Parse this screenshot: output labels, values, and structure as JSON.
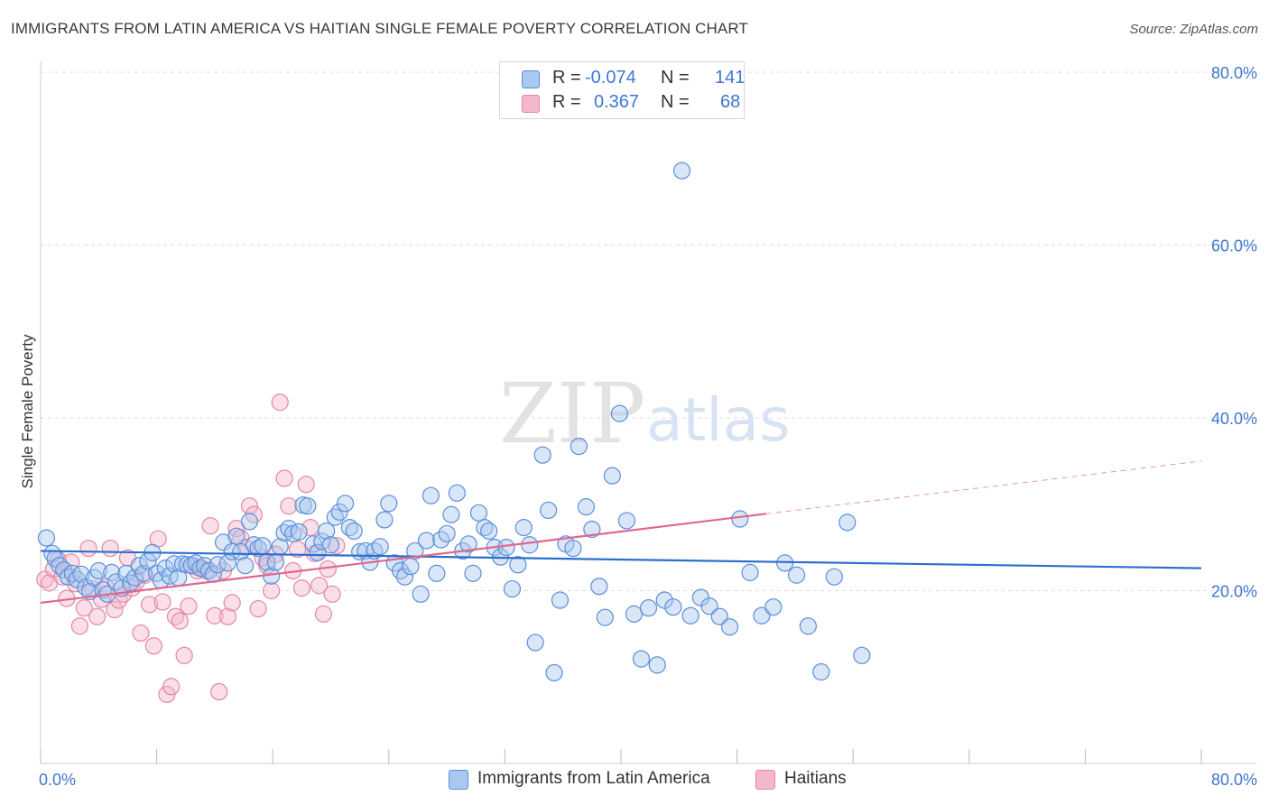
{
  "header": {
    "title": "IMMIGRANTS FROM LATIN AMERICA VS HAITIAN SINGLE FEMALE POVERTY CORRELATION CHART",
    "source": "Source: ZipAtlas.com"
  },
  "legend": {
    "series1": {
      "r_label": "R =",
      "r_value": "-0.074",
      "n_label": "N =",
      "n_value": "141"
    },
    "series2": {
      "r_label": "R =",
      "r_value": "0.367",
      "n_label": "N =",
      "n_value": "68"
    }
  },
  "bottom_legend": {
    "series1_label": "Immigrants from Latin America",
    "series2_label": "Haitians"
  },
  "watermark": {
    "zip": "ZIP",
    "atlas": "atlas"
  },
  "colors": {
    "blue_fill": "#a9c8f0",
    "blue_stroke": "#5b8fd8",
    "blue_line": "#2a6fcf",
    "pink_fill": "#f5b8cb",
    "pink_stroke": "#e486a6",
    "pink_line": "#e06690",
    "tick_text": "#3f77d0",
    "grid": "#dddddd"
  },
  "chart_data": {
    "type": "scatter",
    "title": "IMMIGRANTS FROM LATIN AMERICA VS HAITIAN SINGLE FEMALE POVERTY CORRELATION CHART",
    "xlabel": "",
    "ylabel": "Single Female Poverty",
    "xlim": [
      0,
      80
    ],
    "ylim": [
      0,
      80
    ],
    "x_tick_labels": [
      "0.0%",
      "80.0%"
    ],
    "y_ticks": [
      20,
      40,
      60,
      80
    ],
    "y_tick_labels": [
      "20.0%",
      "40.0%",
      "60.0%",
      "80.0%"
    ],
    "grid": true,
    "legend_position": "top-center",
    "series": [
      {
        "name": "Immigrants from Latin America",
        "r": -0.074,
        "n": 141,
        "trend": {
          "x": [
            0,
            80
          ],
          "y": [
            24.6,
            22.6
          ]
        },
        "points": [
          [
            0.4,
            26.1
          ],
          [
            0.8,
            24.3
          ],
          [
            1.0,
            23.7
          ],
          [
            1.3,
            22.9
          ],
          [
            1.6,
            22.4
          ],
          [
            1.9,
            21.6
          ],
          [
            2.2,
            22.0
          ],
          [
            2.5,
            21.3
          ],
          [
            2.8,
            21.9
          ],
          [
            3.1,
            20.4
          ],
          [
            3.4,
            19.9
          ],
          [
            3.7,
            21.5
          ],
          [
            4.0,
            22.3
          ],
          [
            4.3,
            20.1
          ],
          [
            4.6,
            19.6
          ],
          [
            4.9,
            22.1
          ],
          [
            5.2,
            21.0
          ],
          [
            5.6,
            20.3
          ],
          [
            5.9,
            22.0
          ],
          [
            6.2,
            20.9
          ],
          [
            6.5,
            21.5
          ],
          [
            6.8,
            22.9
          ],
          [
            7.1,
            22.0
          ],
          [
            7.4,
            23.4
          ],
          [
            7.7,
            24.4
          ],
          [
            8.0,
            22.0
          ],
          [
            8.3,
            21.2
          ],
          [
            8.6,
            22.6
          ],
          [
            8.9,
            21.7
          ],
          [
            9.2,
            23.1
          ],
          [
            9.5,
            21.5
          ],
          [
            9.8,
            23.1
          ],
          [
            10.1,
            23.0
          ],
          [
            10.4,
            22.9
          ],
          [
            10.7,
            23.2
          ],
          [
            11.0,
            22.6
          ],
          [
            11.3,
            22.9
          ],
          [
            11.6,
            22.3
          ],
          [
            11.9,
            21.9
          ],
          [
            12.2,
            23.0
          ],
          [
            12.6,
            25.6
          ],
          [
            12.9,
            23.2
          ],
          [
            13.2,
            24.5
          ],
          [
            13.5,
            26.3
          ],
          [
            13.8,
            24.5
          ],
          [
            14.1,
            22.9
          ],
          [
            14.4,
            28.0
          ],
          [
            14.7,
            25.3
          ],
          [
            15.0,
            24.9
          ],
          [
            15.3,
            25.2
          ],
          [
            15.6,
            23.3
          ],
          [
            15.9,
            21.7
          ],
          [
            16.2,
            23.3
          ],
          [
            16.5,
            25.1
          ],
          [
            16.8,
            26.7
          ],
          [
            17.1,
            27.2
          ],
          [
            17.4,
            26.6
          ],
          [
            17.8,
            26.8
          ],
          [
            18.1,
            29.9
          ],
          [
            18.4,
            29.8
          ],
          [
            18.8,
            25.4
          ],
          [
            19.1,
            24.4
          ],
          [
            19.4,
            25.7
          ],
          [
            19.7,
            26.9
          ],
          [
            20.0,
            25.3
          ],
          [
            20.3,
            28.5
          ],
          [
            20.6,
            29.1
          ],
          [
            21.0,
            30.1
          ],
          [
            21.3,
            27.3
          ],
          [
            21.6,
            26.9
          ],
          [
            22.0,
            24.5
          ],
          [
            22.4,
            24.6
          ],
          [
            22.7,
            23.3
          ],
          [
            23.0,
            24.6
          ],
          [
            23.4,
            25.1
          ],
          [
            23.7,
            28.2
          ],
          [
            24.0,
            30.1
          ],
          [
            24.4,
            23.2
          ],
          [
            24.8,
            22.3
          ],
          [
            25.1,
            21.6
          ],
          [
            25.5,
            22.8
          ],
          [
            25.8,
            24.6
          ],
          [
            26.2,
            19.6
          ],
          [
            26.6,
            25.8
          ],
          [
            26.9,
            31.0
          ],
          [
            27.3,
            22.0
          ],
          [
            27.6,
            25.9
          ],
          [
            28.0,
            26.6
          ],
          [
            28.3,
            28.8
          ],
          [
            28.7,
            31.3
          ],
          [
            29.1,
            24.6
          ],
          [
            29.5,
            25.4
          ],
          [
            29.8,
            22.0
          ],
          [
            30.2,
            29.0
          ],
          [
            30.6,
            27.3
          ],
          [
            30.9,
            26.9
          ],
          [
            31.3,
            25.0
          ],
          [
            31.7,
            23.9
          ],
          [
            32.1,
            25.0
          ],
          [
            32.5,
            20.2
          ],
          [
            32.9,
            23.0
          ],
          [
            33.3,
            27.3
          ],
          [
            33.7,
            25.3
          ],
          [
            34.1,
            14.0
          ],
          [
            34.6,
            35.7
          ],
          [
            35.0,
            29.3
          ],
          [
            35.4,
            10.5
          ],
          [
            35.8,
            18.9
          ],
          [
            36.2,
            25.4
          ],
          [
            36.7,
            24.9
          ],
          [
            37.1,
            36.7
          ],
          [
            37.6,
            29.7
          ],
          [
            38.0,
            27.1
          ],
          [
            38.5,
            20.5
          ],
          [
            38.9,
            16.9
          ],
          [
            39.4,
            33.3
          ],
          [
            39.9,
            40.5
          ],
          [
            40.4,
            28.1
          ],
          [
            40.9,
            17.3
          ],
          [
            41.4,
            12.1
          ],
          [
            41.9,
            18.0
          ],
          [
            42.5,
            11.4
          ],
          [
            43.0,
            18.9
          ],
          [
            43.6,
            18.1
          ],
          [
            44.2,
            68.6
          ],
          [
            44.8,
            17.1
          ],
          [
            45.5,
            19.2
          ],
          [
            46.1,
            18.2
          ],
          [
            46.8,
            17.0
          ],
          [
            47.5,
            15.8
          ],
          [
            48.2,
            28.3
          ],
          [
            48.9,
            22.1
          ],
          [
            49.7,
            17.1
          ],
          [
            50.5,
            18.1
          ],
          [
            51.3,
            23.2
          ],
          [
            52.1,
            21.8
          ],
          [
            52.9,
            15.9
          ],
          [
            53.8,
            10.6
          ],
          [
            54.7,
            21.6
          ],
          [
            55.6,
            27.9
          ],
          [
            56.6,
            12.5
          ]
        ]
      },
      {
        "name": "Haitians",
        "r": 0.367,
        "n": 68,
        "trend": {
          "x": [
            0,
            50
          ],
          "y": [
            18.6,
            28.9
          ]
        },
        "trend_ext": {
          "x": [
            50,
            80
          ],
          "y": [
            28.9,
            35.0
          ]
        },
        "points": [
          [
            0.3,
            21.3
          ],
          [
            0.6,
            20.9
          ],
          [
            0.9,
            22.5
          ],
          [
            1.2,
            23.6
          ],
          [
            1.5,
            21.6
          ],
          [
            1.8,
            19.1
          ],
          [
            2.1,
            23.3
          ],
          [
            2.4,
            20.8
          ],
          [
            2.7,
            15.9
          ],
          [
            3.0,
            18.0
          ],
          [
            3.3,
            24.9
          ],
          [
            3.6,
            20.2
          ],
          [
            3.9,
            17.0
          ],
          [
            4.2,
            19.0
          ],
          [
            4.5,
            20.4
          ],
          [
            4.8,
            24.9
          ],
          [
            5.1,
            17.8
          ],
          [
            5.4,
            18.9
          ],
          [
            5.7,
            19.6
          ],
          [
            6.0,
            23.8
          ],
          [
            6.3,
            20.3
          ],
          [
            6.6,
            21.0
          ],
          [
            6.9,
            15.1
          ],
          [
            7.2,
            21.8
          ],
          [
            7.5,
            18.4
          ],
          [
            7.8,
            13.6
          ],
          [
            8.1,
            26.0
          ],
          [
            8.4,
            18.7
          ],
          [
            8.7,
            8.0
          ],
          [
            9.0,
            8.9
          ],
          [
            9.3,
            17.0
          ],
          [
            9.6,
            16.5
          ],
          [
            9.9,
            12.5
          ],
          [
            10.2,
            18.2
          ],
          [
            10.5,
            22.9
          ],
          [
            10.8,
            22.3
          ],
          [
            11.1,
            22.6
          ],
          [
            11.4,
            22.3
          ],
          [
            11.7,
            27.5
          ],
          [
            12.0,
            17.1
          ],
          [
            12.3,
            8.3
          ],
          [
            12.6,
            22.3
          ],
          [
            12.9,
            17.0
          ],
          [
            13.2,
            18.6
          ],
          [
            13.5,
            27.2
          ],
          [
            13.8,
            26.1
          ],
          [
            14.1,
            25.0
          ],
          [
            14.4,
            29.8
          ],
          [
            14.7,
            28.8
          ],
          [
            15.0,
            17.9
          ],
          [
            15.3,
            23.8
          ],
          [
            15.6,
            22.9
          ],
          [
            15.9,
            20.0
          ],
          [
            16.2,
            24.2
          ],
          [
            16.5,
            41.8
          ],
          [
            16.8,
            33.0
          ],
          [
            17.1,
            29.8
          ],
          [
            17.4,
            22.3
          ],
          [
            17.7,
            24.8
          ],
          [
            18.0,
            20.3
          ],
          [
            18.3,
            32.3
          ],
          [
            18.6,
            27.3
          ],
          [
            18.9,
            24.3
          ],
          [
            19.2,
            20.6
          ],
          [
            19.5,
            17.3
          ],
          [
            19.8,
            22.5
          ],
          [
            20.1,
            19.6
          ],
          [
            20.4,
            25.2
          ]
        ]
      }
    ]
  }
}
